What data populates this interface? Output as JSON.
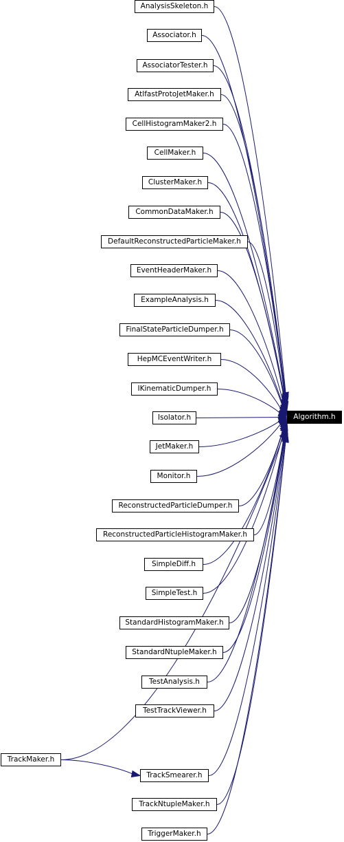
{
  "target": "Algorithm.h",
  "sources": [
    "AnalysisSkeleton.h",
    "Associator.h",
    "AssociatorTester.h",
    "AtlfastProtoJetMaker.h",
    "CellHistogramMaker2.h",
    "CellMaker.h",
    "ClusterMaker.h",
    "CommonDataMaker.h",
    "DefaultReconstructedParticleMaker.h",
    "EventHeaderMaker.h",
    "ExampleAnalysis.h",
    "FinalStateParticleDumper.h",
    "HepMCEventWriter.h",
    "IKinematicDumper.h",
    "Isolator.h",
    "JetMaker.h",
    "Monitor.h",
    "ReconstructedParticleDumper.h",
    "ReconstructedParticleHistogramMaker.h",
    "SimpleDiff.h",
    "SimpleTest.h",
    "StandardHistogramMaker.h",
    "StandardNtupleMaker.h",
    "TestAnalysis.h",
    "TestTrackViewer.h",
    "TrackMaker.h",
    "TrackSmearer.h",
    "TrackNtupleMaker.h",
    "TriggerMaker.h"
  ],
  "extra_edges": [
    {
      "from": "TrackMaker.h",
      "to": "TrackSmearer.h"
    }
  ],
  "colors": {
    "edge": "#191970",
    "node_border": "#000000",
    "target_fill": "#000000",
    "target_text": "#ffffff"
  }
}
